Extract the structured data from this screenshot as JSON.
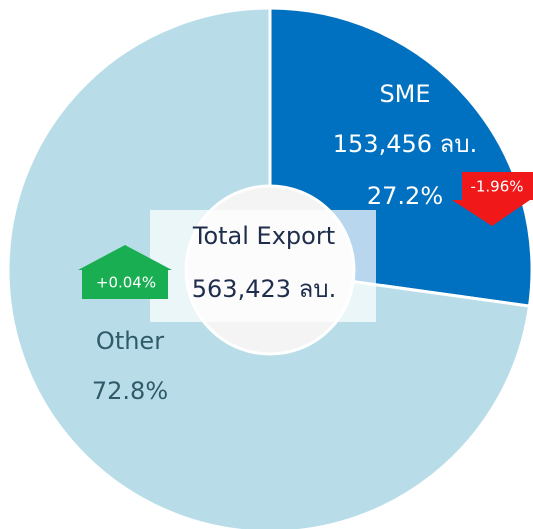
{
  "chart_data": {
    "type": "pie",
    "categories": [
      "SME",
      "Other"
    ],
    "values": [
      27.2,
      72.8
    ],
    "value_labels": [
      "27.2%",
      "72.8%"
    ],
    "colors": [
      "#0070c0",
      "#b8dde8"
    ],
    "amounts": [
      "153,456 ลบ.",
      null
    ],
    "changes": [
      "-1.96%",
      "+0.04%"
    ],
    "total_label": "Total Export",
    "total_value": "563,423 ลบ."
  }
}
